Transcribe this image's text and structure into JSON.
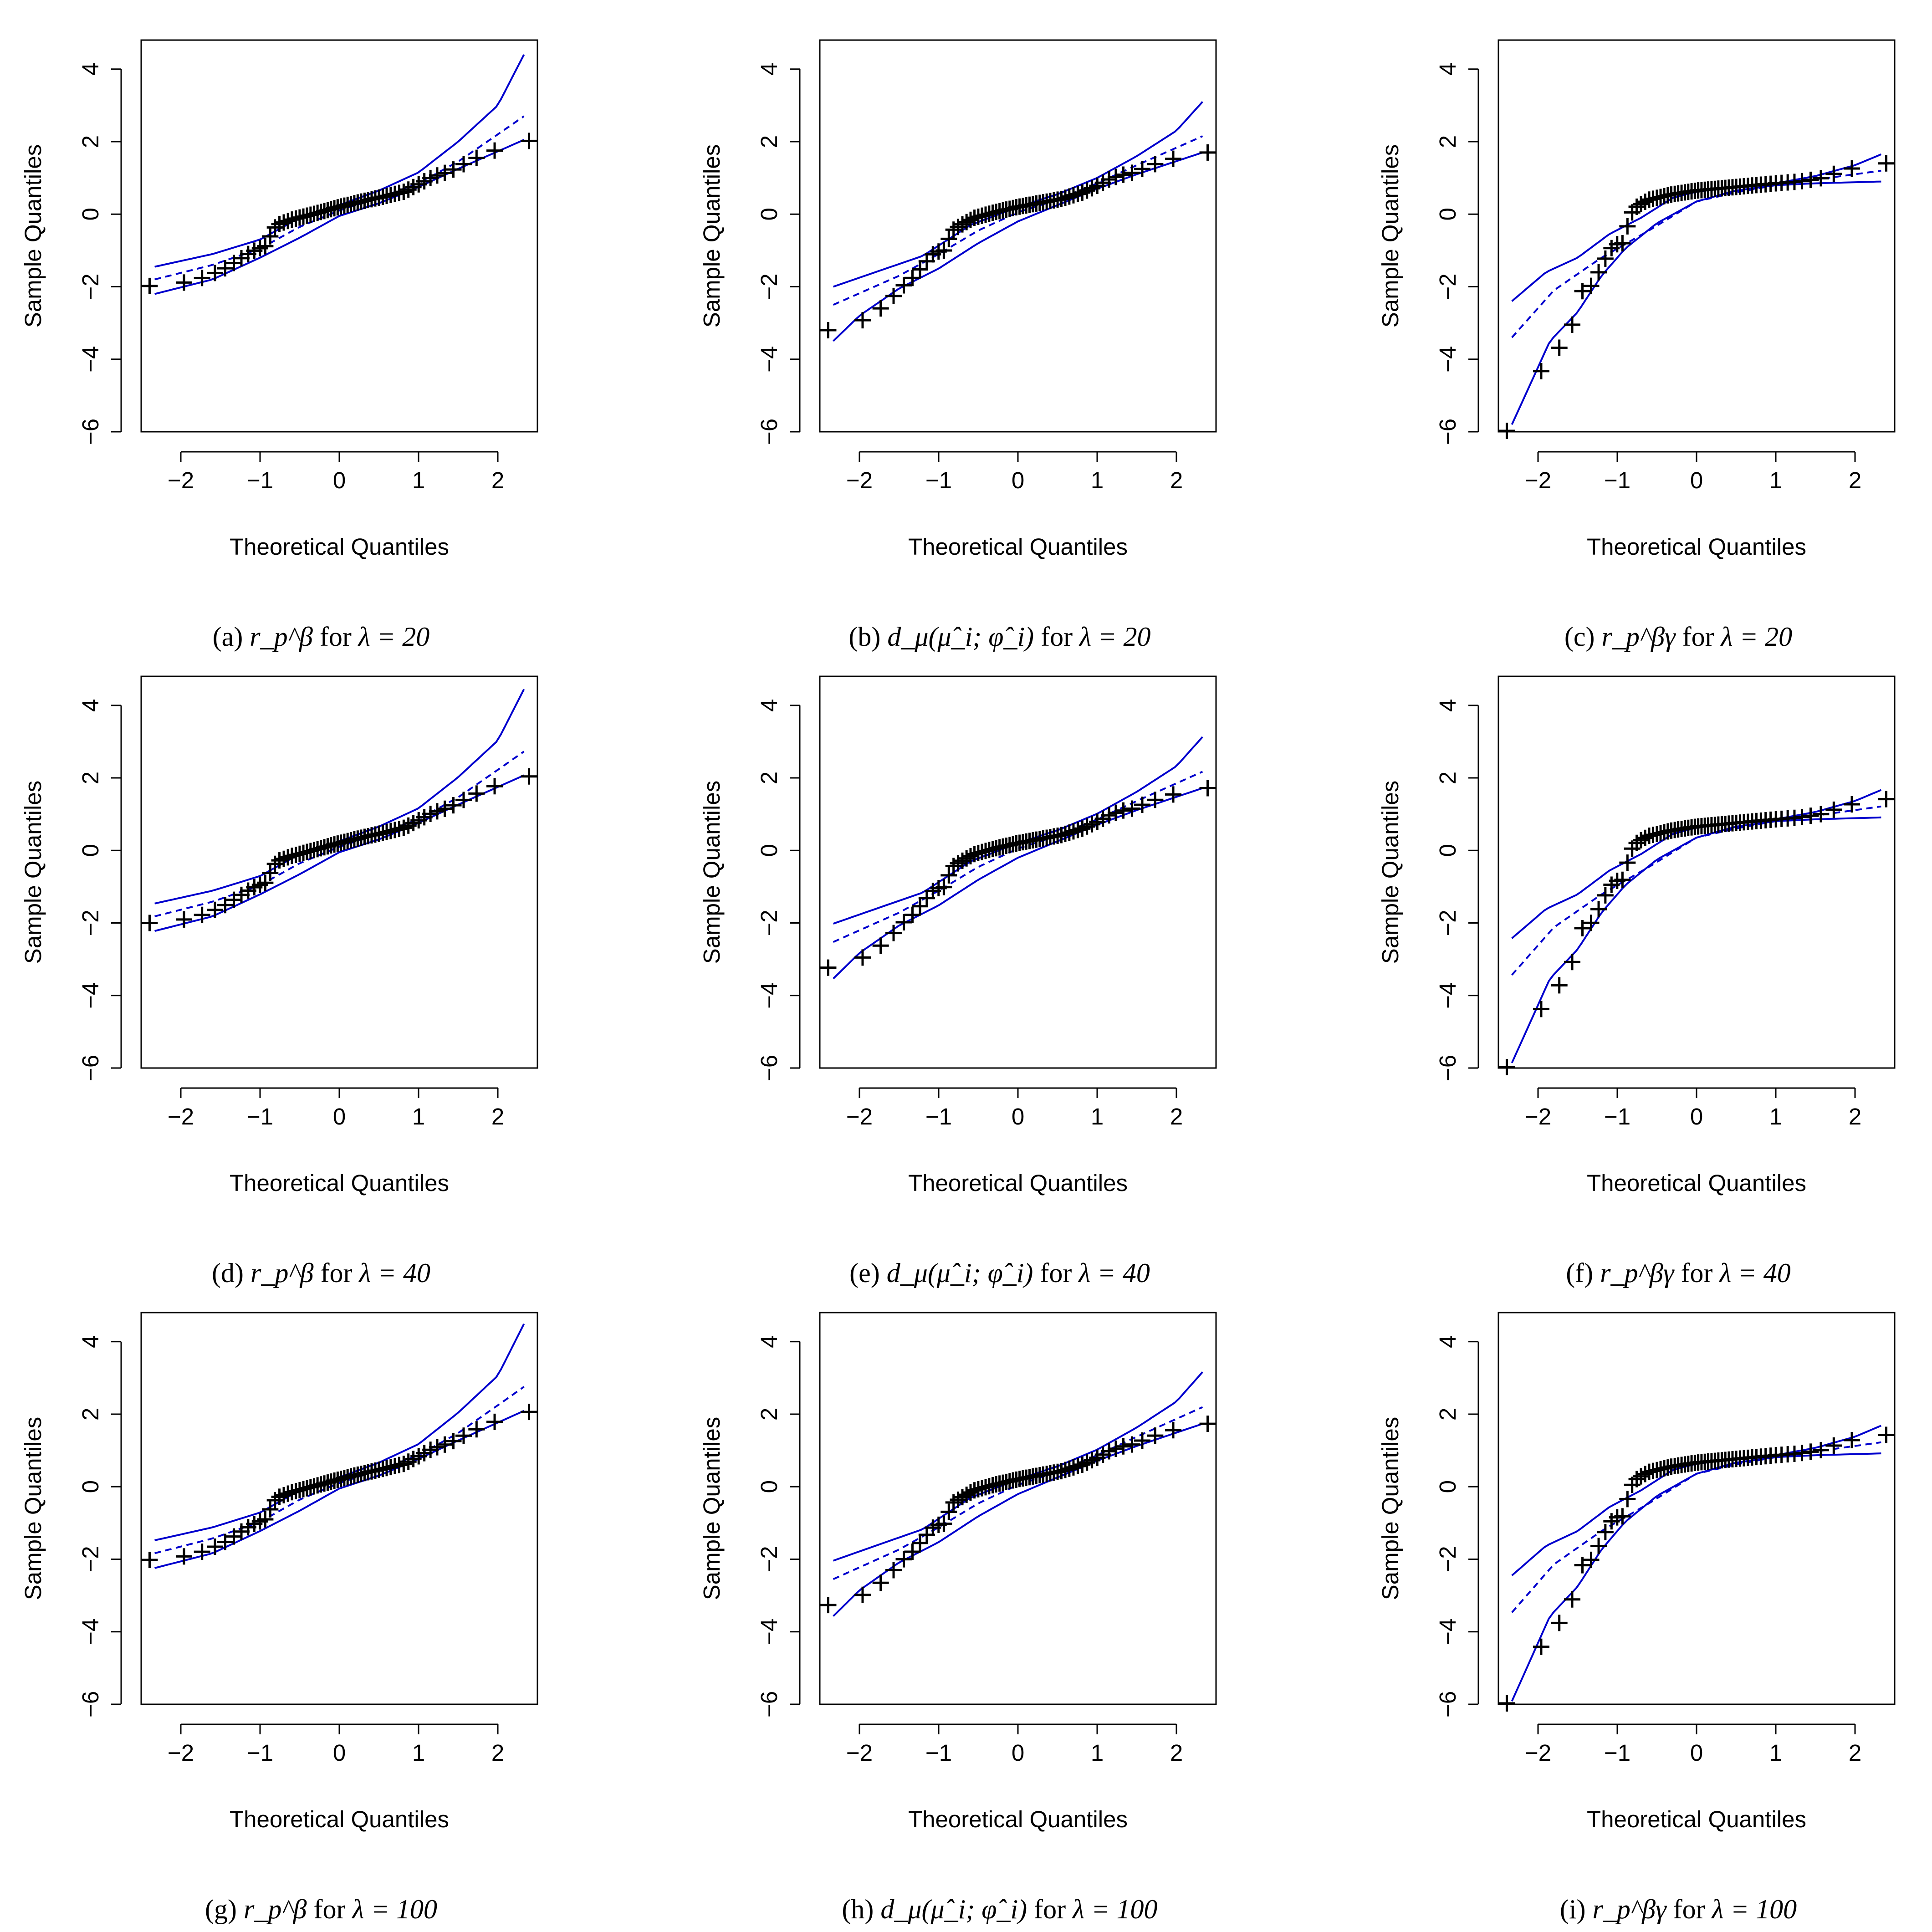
{
  "figure": {
    "colors": {
      "envelope": "#0000cd",
      "points": "#000000",
      "axes": "#000000"
    },
    "shared_axes": {
      "xlabel": "Theoretical Quantiles",
      "ylabel": "Sample Quantiles",
      "x_ticks": [
        -2,
        -1,
        0,
        1,
        2
      ],
      "y_ticks": [
        -6,
        -4,
        -2,
        0,
        2,
        4
      ],
      "xlim": [
        -2.5,
        2.5
      ],
      "ylim": [
        -6.0,
        4.8
      ]
    }
  },
  "chart_data": [
    {
      "id": "a",
      "type": "scatter",
      "title": "(a) r_p^β for λ = 20",
      "caption_label": "(a)",
      "caption_symbol": "r_p^β",
      "caption_for": "for",
      "caption_lambda": "λ = 20",
      "xlabel": "Theoretical Quantiles",
      "ylabel": "Sample Quantiles",
      "family": "beta",
      "scale": 1.0,
      "outlier": false
    },
    {
      "id": "b",
      "type": "scatter",
      "title": "(b) d_μ(μ̂_i; φ̂_i) for λ = 20",
      "caption_label": "(b)",
      "caption_symbol": "d_μ(μ̂_i; φ̂_i)",
      "caption_for": "for",
      "caption_lambda": "λ = 20",
      "xlabel": "Theoretical Quantiles",
      "ylabel": "Sample Quantiles",
      "family": "dmu",
      "scale": 1.0,
      "outlier": false
    },
    {
      "id": "c",
      "type": "scatter",
      "title": "(c) r_p^βγ for λ = 20",
      "caption_label": "(c)",
      "caption_symbol": "r_p^βγ",
      "caption_for": "for",
      "caption_lambda": "λ = 20",
      "xlabel": "Theoretical Quantiles",
      "ylabel": "Sample Quantiles",
      "family": "betagamma",
      "scale": 1.0,
      "outlier": true
    },
    {
      "id": "d",
      "type": "scatter",
      "title": "(d) r_p^β for λ = 40",
      "caption_label": "(d)",
      "caption_symbol": "r_p^β",
      "caption_for": "for",
      "caption_lambda": "λ = 40",
      "xlabel": "Theoretical Quantiles",
      "ylabel": "Sample Quantiles",
      "family": "beta",
      "scale": 1.01,
      "outlier": false
    },
    {
      "id": "e",
      "type": "scatter",
      "title": "(e) d_μ(μ̂_i; φ̂_i) for λ = 40",
      "caption_label": "(e)",
      "caption_symbol": "d_μ(μ̂_i; φ̂_i)",
      "caption_for": "for",
      "caption_lambda": "λ = 40",
      "xlabel": "Theoretical Quantiles",
      "ylabel": "Sample Quantiles",
      "family": "dmu",
      "scale": 1.01,
      "outlier": false
    },
    {
      "id": "f",
      "type": "scatter",
      "title": "(f) r_p^βγ for λ = 40",
      "caption_label": "(f)",
      "caption_symbol": "r_p^βγ",
      "caption_for": "for",
      "caption_lambda": "λ = 40",
      "xlabel": "Theoretical Quantiles",
      "ylabel": "Sample Quantiles",
      "family": "betagamma",
      "scale": 1.01,
      "outlier": true
    },
    {
      "id": "g",
      "type": "scatter",
      "title": "(g) r_p^β for λ = 100",
      "caption_label": "(g)",
      "caption_symbol": "r_p^β",
      "caption_for": "for",
      "caption_lambda": "λ = 100",
      "xlabel": "Theoretical Quantiles",
      "ylabel": "Sample Quantiles",
      "family": "beta",
      "scale": 1.02,
      "outlier": false
    },
    {
      "id": "h",
      "type": "scatter",
      "title": "(h) d_μ(μ̂_i; φ̂_i) for λ = 100",
      "caption_label": "(h)",
      "caption_symbol": "d_μ(μ̂_i; φ̂_i)",
      "caption_for": "for",
      "caption_lambda": "λ = 100",
      "xlabel": "Theoretical Quantiles",
      "ylabel": "Sample Quantiles",
      "family": "dmu",
      "scale": 1.02,
      "outlier": false
    },
    {
      "id": "i",
      "type": "scatter",
      "title": "(i) r_p^βγ for λ = 100",
      "caption_label": "(i)",
      "caption_symbol": "r_p^βγ",
      "caption_for": "for",
      "caption_lambda": "λ = 100",
      "xlabel": "Theoretical Quantiles",
      "ylabel": "Sample Quantiles",
      "family": "betagamma",
      "scale": 1.02,
      "outlier": true
    }
  ]
}
